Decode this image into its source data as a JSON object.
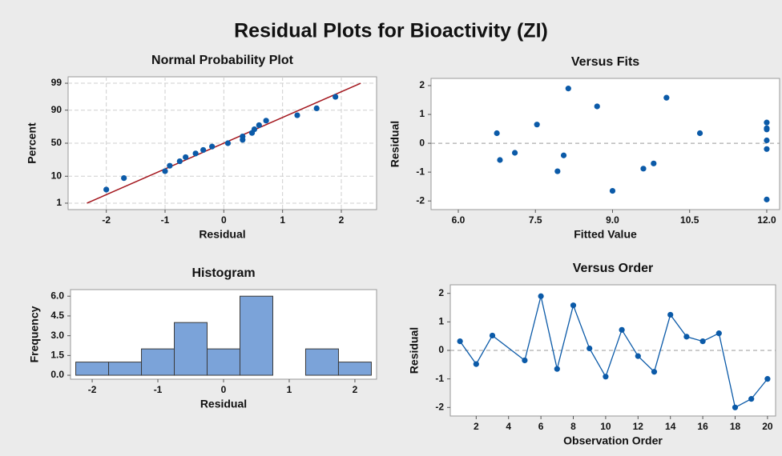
{
  "title": "Residual Plots for Bioactivity (ZI)",
  "chart_data": [
    {
      "type": "normal_probability",
      "title": "Normal Probability Plot",
      "x_label": "Residual",
      "y_label": "Percent",
      "x": [
        -2.0,
        -1.7,
        -1.0,
        -0.92,
        -0.75,
        -0.65,
        -0.48,
        -0.35,
        -0.2,
        0.07,
        0.32,
        0.32,
        0.48,
        0.52,
        0.6,
        0.72,
        1.25,
        1.58,
        1.9
      ],
      "values": [
        3.6,
        8.8,
        13.9,
        19.1,
        24.2,
        29.4,
        34.5,
        39.7,
        44.8,
        50,
        55.2,
        60.3,
        65.5,
        70.6,
        75.8,
        80.9,
        86.1,
        91.2,
        96.4
      ],
      "reference_line": {
        "x": [
          -2.33,
          2.33
        ],
        "y": [
          1,
          99
        ]
      },
      "xlim": [
        -2.65,
        2.6
      ],
      "xticks": [
        -2,
        -1,
        0,
        1,
        2
      ],
      "ylim": [
        0.5,
        99.5
      ],
      "yticks": [
        1,
        10,
        50,
        90,
        99
      ],
      "y_scale": "probability",
      "grid": true,
      "color": "#0b5aa8",
      "line_color": "#a3151c"
    },
    {
      "type": "scatter",
      "title": "Versus Fits",
      "x_label": "Fitted Value",
      "y_label": "Residual",
      "x": [
        6.75,
        6.81,
        7.1,
        7.53,
        7.93,
        8.05,
        8.14,
        8.7,
        9.0,
        9.6,
        9.8,
        10.05,
        10.7,
        12.0,
        12.0,
        12.0,
        12.0,
        12.0,
        12.0
      ],
      "values": [
        0.35,
        -0.58,
        -0.33,
        0.65,
        -0.97,
        -0.42,
        1.9,
        1.28,
        -1.65,
        -0.88,
        -0.7,
        1.58,
        0.35,
        0.72,
        0.52,
        0.48,
        0.1,
        -0.2,
        -1.95
      ],
      "hline": 0,
      "xlim": [
        5.47,
        12.25
      ],
      "xticks": [
        {
          "value": 6,
          "label": "6.0"
        },
        7.5,
        {
          "value": 9,
          "label": "9.0"
        },
        10.5,
        {
          "value": 12,
          "label": "12.0"
        }
      ],
      "ylim": [
        -2.3,
        2.25
      ],
      "yticks": [
        -2,
        -1,
        0,
        1,
        2
      ],
      "grid": false,
      "color": "#0b5aa8"
    },
    {
      "type": "histogram",
      "title": "Histogram",
      "x_label": "Residual",
      "y_label": "Frequency",
      "bins": [
        -2.25,
        -1.75,
        -1.25,
        -0.75,
        -0.25,
        0.25,
        0.75,
        1.25,
        1.75,
        2.25
      ],
      "values": [
        1,
        1,
        2,
        4,
        2,
        6,
        0,
        2,
        1
      ],
      "xlim": [
        -2.33,
        2.33
      ],
      "xticks": [
        -2,
        -1,
        0,
        1,
        2
      ],
      "ylim": [
        -0.3,
        6.5
      ],
      "yticks": [
        {
          "value": 0,
          "label": "0.0"
        },
        1.5,
        {
          "value": 3,
          "label": "3.0"
        },
        4.5,
        {
          "value": 6,
          "label": "6.0"
        }
      ],
      "grid": false,
      "color": "#7ba3d9"
    },
    {
      "type": "line",
      "title": "Versus Order",
      "x_label": "Observation Order",
      "y_label": "Residual",
      "x": [
        1,
        2,
        3,
        5,
        6,
        7,
        8,
        9,
        10,
        11,
        12,
        13,
        14,
        15,
        16,
        17,
        18,
        19,
        20
      ],
      "values": [
        0.32,
        -0.48,
        0.52,
        -0.35,
        1.9,
        -0.65,
        1.58,
        0.07,
        -0.92,
        0.72,
        -0.2,
        -0.75,
        1.25,
        0.48,
        0.32,
        0.6,
        -2.0,
        -1.7,
        -1.0
      ],
      "hline": 0,
      "xlim": [
        0.4,
        20.5
      ],
      "xticks": [
        2,
        4,
        6,
        8,
        10,
        12,
        14,
        16,
        18,
        20
      ],
      "ylim": [
        -2.3,
        2.3
      ],
      "yticks": [
        -2,
        -1,
        0,
        1,
        2
      ],
      "grid": false,
      "color": "#0b5aa8"
    }
  ]
}
